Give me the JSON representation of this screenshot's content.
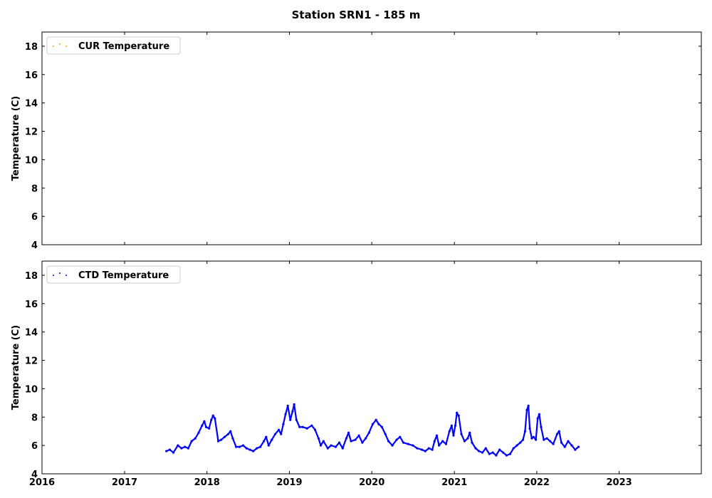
{
  "title": "Station SRN1 - 185 m",
  "chart_data": [
    {
      "type": "scatter",
      "ylabel": "Temperature (C)",
      "ylim": [
        4,
        19
      ],
      "xlim": [
        "2016-01-01",
        "2023-12-31"
      ],
      "yticks": [
        4,
        6,
        8,
        10,
        12,
        14,
        16,
        18
      ],
      "xticks": [
        "2016",
        "2017",
        "2018",
        "2019",
        "2020",
        "2021",
        "2022",
        "2023"
      ],
      "show_xtick_labels": false,
      "legend": {
        "position": "upper-left",
        "label": "CUR Temperature"
      },
      "series": [
        {
          "name": "CUR Temperature",
          "color": "#ffa500",
          "points": []
        }
      ]
    },
    {
      "type": "scatter",
      "ylabel": "Temperature (C)",
      "ylim": [
        4,
        19
      ],
      "xlim": [
        "2016-01-01",
        "2023-12-31"
      ],
      "yticks": [
        4,
        6,
        8,
        10,
        12,
        14,
        16,
        18
      ],
      "xticks": [
        "2016",
        "2017",
        "2018",
        "2019",
        "2020",
        "2021",
        "2022",
        "2023"
      ],
      "show_xtick_labels": true,
      "legend": {
        "position": "upper-left",
        "label": "CTD Temperature"
      },
      "series": [
        {
          "name": "CTD Temperature",
          "color": "#0000ff",
          "points": [
            [
              "2017-07-05",
              5.6
            ],
            [
              "2017-07-20",
              5.7
            ],
            [
              "2017-08-05",
              5.5
            ],
            [
              "2017-08-25",
              6.0
            ],
            [
              "2017-09-10",
              5.8
            ],
            [
              "2017-09-25",
              5.9
            ],
            [
              "2017-10-10",
              5.8
            ],
            [
              "2017-10-25",
              6.3
            ],
            [
              "2017-11-10",
              6.5
            ],
            [
              "2017-11-25",
              6.9
            ],
            [
              "2017-12-10",
              7.4
            ],
            [
              "2017-12-20",
              7.7
            ],
            [
              "2017-12-28",
              7.3
            ],
            [
              "2018-01-10",
              7.2
            ],
            [
              "2018-01-20",
              7.8
            ],
            [
              "2018-01-28",
              8.1
            ],
            [
              "2018-02-05",
              7.9
            ],
            [
              "2018-02-20",
              6.3
            ],
            [
              "2018-03-05",
              6.4
            ],
            [
              "2018-03-20",
              6.6
            ],
            [
              "2018-04-05",
              6.8
            ],
            [
              "2018-04-15",
              7.0
            ],
            [
              "2018-04-25",
              6.5
            ],
            [
              "2018-05-10",
              5.9
            ],
            [
              "2018-05-25",
              5.9
            ],
            [
              "2018-06-10",
              6.0
            ],
            [
              "2018-06-25",
              5.8
            ],
            [
              "2018-07-10",
              5.7
            ],
            [
              "2018-07-25",
              5.6
            ],
            [
              "2018-08-10",
              5.8
            ],
            [
              "2018-08-25",
              5.9
            ],
            [
              "2018-09-10",
              6.3
            ],
            [
              "2018-09-20",
              6.6
            ],
            [
              "2018-10-01",
              6.0
            ],
            [
              "2018-10-15",
              6.4
            ],
            [
              "2018-10-30",
              6.8
            ],
            [
              "2018-11-15",
              7.1
            ],
            [
              "2018-11-25",
              6.8
            ],
            [
              "2018-12-05",
              7.5
            ],
            [
              "2018-12-15",
              8.2
            ],
            [
              "2018-12-25",
              8.8
            ],
            [
              "2019-01-05",
              7.8
            ],
            [
              "2019-01-15",
              8.4
            ],
            [
              "2019-01-22",
              8.9
            ],
            [
              "2019-02-01",
              7.8
            ],
            [
              "2019-02-15",
              7.3
            ],
            [
              "2019-03-01",
              7.3
            ],
            [
              "2019-03-20",
              7.2
            ],
            [
              "2019-04-10",
              7.4
            ],
            [
              "2019-04-25",
              7.1
            ],
            [
              "2019-05-10",
              6.5
            ],
            [
              "2019-05-20",
              6.0
            ],
            [
              "2019-06-01",
              6.3
            ],
            [
              "2019-06-20",
              5.8
            ],
            [
              "2019-07-05",
              6.0
            ],
            [
              "2019-07-25",
              5.9
            ],
            [
              "2019-08-10",
              6.2
            ],
            [
              "2019-08-25",
              5.8
            ],
            [
              "2019-09-10",
              6.5
            ],
            [
              "2019-09-20",
              6.9
            ],
            [
              "2019-10-01",
              6.3
            ],
            [
              "2019-10-20",
              6.4
            ],
            [
              "2019-11-05",
              6.7
            ],
            [
              "2019-11-20",
              6.2
            ],
            [
              "2019-12-05",
              6.5
            ],
            [
              "2019-12-20",
              6.9
            ],
            [
              "2020-01-05",
              7.5
            ],
            [
              "2020-01-20",
              7.8
            ],
            [
              "2020-02-01",
              7.5
            ],
            [
              "2020-02-15",
              7.3
            ],
            [
              "2020-03-01",
              6.8
            ],
            [
              "2020-03-15",
              6.3
            ],
            [
              "2020-04-01",
              6.0
            ],
            [
              "2020-04-20",
              6.4
            ],
            [
              "2020-05-05",
              6.6
            ],
            [
              "2020-05-20",
              6.2
            ],
            [
              "2020-06-10",
              6.1
            ],
            [
              "2020-07-01",
              6.0
            ],
            [
              "2020-07-20",
              5.8
            ],
            [
              "2020-08-10",
              5.7
            ],
            [
              "2020-08-25",
              5.6
            ],
            [
              "2020-09-10",
              5.8
            ],
            [
              "2020-09-25",
              5.7
            ],
            [
              "2020-10-05",
              6.3
            ],
            [
              "2020-10-15",
              6.7
            ],
            [
              "2020-10-25",
              6.0
            ],
            [
              "2020-11-10",
              6.3
            ],
            [
              "2020-11-25",
              6.1
            ],
            [
              "2020-12-10",
              7.0
            ],
            [
              "2020-12-20",
              7.4
            ],
            [
              "2020-12-28",
              6.7
            ],
            [
              "2021-01-05",
              7.4
            ],
            [
              "2021-01-12",
              8.3
            ],
            [
              "2021-01-20",
              8.1
            ],
            [
              "2021-02-01",
              6.8
            ],
            [
              "2021-02-15",
              6.3
            ],
            [
              "2021-03-01",
              6.5
            ],
            [
              "2021-03-10",
              6.9
            ],
            [
              "2021-03-20",
              6.2
            ],
            [
              "2021-04-05",
              5.8
            ],
            [
              "2021-04-20",
              5.6
            ],
            [
              "2021-05-05",
              5.5
            ],
            [
              "2021-05-20",
              5.8
            ],
            [
              "2021-06-05",
              5.4
            ],
            [
              "2021-06-20",
              5.5
            ],
            [
              "2021-07-05",
              5.3
            ],
            [
              "2021-07-20",
              5.7
            ],
            [
              "2021-08-05",
              5.5
            ],
            [
              "2021-08-20",
              5.3
            ],
            [
              "2021-09-05",
              5.4
            ],
            [
              "2021-09-20",
              5.8
            ],
            [
              "2021-10-05",
              6.0
            ],
            [
              "2021-10-20",
              6.2
            ],
            [
              "2021-11-01",
              6.4
            ],
            [
              "2021-11-10",
              7.0
            ],
            [
              "2021-11-18",
              8.5
            ],
            [
              "2021-11-25",
              8.8
            ],
            [
              "2021-12-01",
              7.2
            ],
            [
              "2021-12-10",
              6.5
            ],
            [
              "2021-12-18",
              6.6
            ],
            [
              "2021-12-28",
              6.4
            ],
            [
              "2022-01-05",
              7.9
            ],
            [
              "2022-01-12",
              8.2
            ],
            [
              "2022-01-20",
              7.3
            ],
            [
              "2022-02-01",
              6.4
            ],
            [
              "2022-02-15",
              6.5
            ],
            [
              "2022-03-01",
              6.3
            ],
            [
              "2022-03-15",
              6.1
            ],
            [
              "2022-04-01",
              6.8
            ],
            [
              "2022-04-10",
              7.0
            ],
            [
              "2022-04-20",
              6.2
            ],
            [
              "2022-05-05",
              5.9
            ],
            [
              "2022-05-20",
              6.3
            ],
            [
              "2022-06-05",
              6.0
            ],
            [
              "2022-06-20",
              5.7
            ],
            [
              "2022-07-05",
              5.9
            ]
          ]
        }
      ]
    }
  ]
}
